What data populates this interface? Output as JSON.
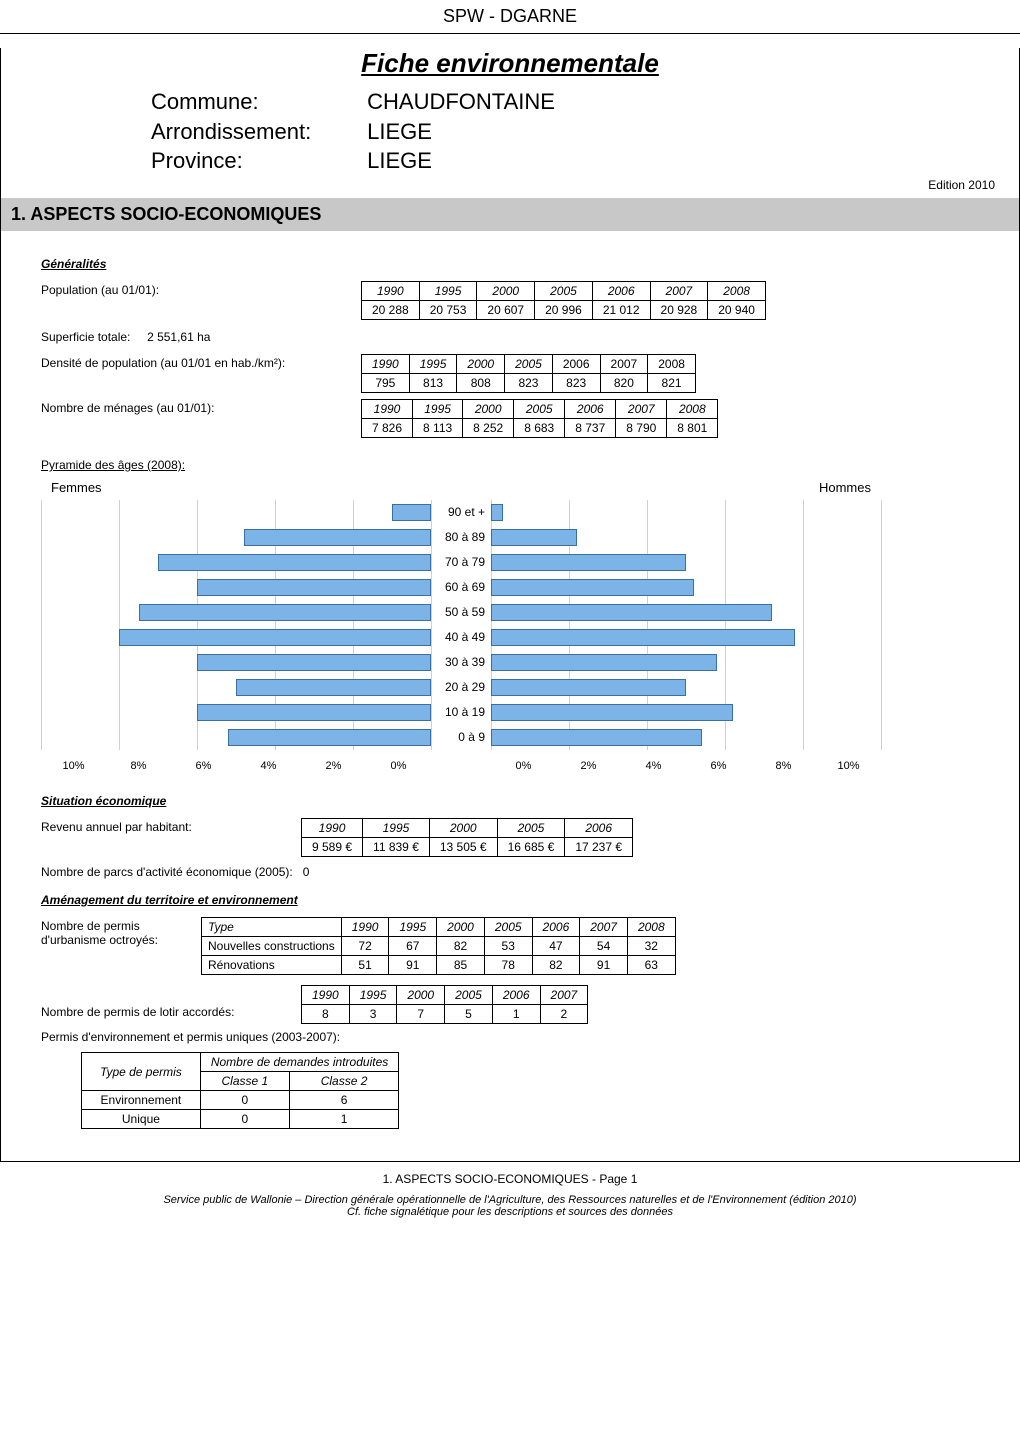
{
  "header": {
    "org": "SPW - DGARNE",
    "fiche_title": "Fiche environnementale"
  },
  "commune": {
    "commune_label": "Commune:",
    "commune_value": "CHAUDFONTAINE",
    "arr_label": "Arrondissement:",
    "arr_value": "LIEGE",
    "prov_label": "Province:",
    "prov_value": "LIEGE",
    "edition": "Edition  2010"
  },
  "section1": {
    "title": "1. ASPECTS SOCIO-ECONOMIQUES"
  },
  "generalites": {
    "title": "Généralités",
    "population_label": "Population (au 01/01):",
    "population": {
      "years": [
        "1990",
        "1995",
        "2000",
        "2005",
        "2006",
        "2007",
        "2008"
      ],
      "values": [
        "20 288",
        "20 753",
        "20 607",
        "20 996",
        "21 012",
        "20 928",
        "20 940"
      ]
    },
    "superficie_label": "Superficie totale:",
    "superficie_value": "2 551,61 ha",
    "densite_label": "Densité de population (au 01/01 en hab./km²):",
    "densite": {
      "years": [
        "1990",
        "1995",
        "2000",
        "2005",
        "2006",
        "2007",
        "2008"
      ],
      "values": [
        "795",
        "813",
        "808",
        "823",
        "823",
        "820",
        "821"
      ],
      "year_italics": [
        true,
        true,
        true,
        true,
        false,
        false,
        false
      ]
    },
    "menages_label": "Nombre de ménages (au 01/01):",
    "menages": {
      "years": [
        "1990",
        "1995",
        "2000",
        "2005",
        "2006",
        "2007",
        "2008"
      ],
      "values": [
        "7 826",
        "8 113",
        "8 252",
        "8 683",
        "8 737",
        "8 790",
        "8 801"
      ]
    },
    "pyramide_label": "Pyramide des âges (2008):",
    "pyramid": {
      "left_title": "Femmes",
      "right_title": "Hommes",
      "age_labels": [
        "90 et +",
        "80 à 89",
        "70 à 79",
        "60 à 69",
        "50 à 59",
        "40 à 49",
        "30 à 39",
        "20 à 29",
        "10 à 19",
        "0 à 9"
      ],
      "female_pct": [
        1.0,
        4.8,
        7.0,
        6.0,
        7.5,
        8.0,
        6.0,
        5.0,
        6.0,
        5.2
      ],
      "male_pct": [
        0.3,
        2.2,
        5.0,
        5.2,
        7.2,
        7.8,
        5.8,
        5.0,
        6.2,
        5.4
      ],
      "x_ticks": [
        "10%",
        "8%",
        "6%",
        "4%",
        "2%",
        "0%"
      ],
      "x_ticks_right": [
        "0%",
        "2%",
        "4%",
        "6%",
        "8%",
        "10%"
      ],
      "x_max_pct": 10,
      "bar_fill": "#7db4e8",
      "bar_border": "#3b6fa0",
      "grid_color": "#d0d0d0"
    }
  },
  "situation": {
    "title": "Situation économique",
    "revenu_label": "Revenu annuel par habitant:",
    "revenu": {
      "years": [
        "1990",
        "1995",
        "2000",
        "2005",
        "2006"
      ],
      "values": [
        "9 589 €",
        "11 839 €",
        "13 505 €",
        "16 685 €",
        "17 237 €"
      ]
    },
    "parcs_label": "Nombre de parcs d'activité économique (2005):",
    "parcs_value": "0"
  },
  "amenagement": {
    "title": "Aménagement du territoire et environnement",
    "permis_label": "Nombre de permis d'urbanisme octroyés:",
    "permis": {
      "type_header": "Type",
      "years": [
        "1990",
        "1995",
        "2000",
        "2005",
        "2006",
        "2007",
        "2008"
      ],
      "rows": [
        {
          "type": "Nouvelles constructions",
          "vals": [
            "72",
            "67",
            "82",
            "53",
            "47",
            "54",
            "32"
          ]
        },
        {
          "type": "Rénovations",
          "vals": [
            "51",
            "91",
            "85",
            "78",
            "82",
            "91",
            "63"
          ]
        }
      ]
    },
    "lotir_label": "Nombre de permis de lotir accordés:",
    "lotir": {
      "years": [
        "1990",
        "1995",
        "2000",
        "2005",
        "2006",
        "2007"
      ],
      "values": [
        "8",
        "3",
        "7",
        "5",
        "1",
        "2"
      ]
    },
    "permis_env_label": "Permis d'environnement et permis uniques (2003-2007):",
    "permis_env": {
      "col_type": "Type de permis",
      "col_nb": "Nombre de demandes  introduites",
      "col_c1": "Classe 1",
      "col_c2": "Classe 2",
      "rows": [
        {
          "type": "Environnement",
          "c1": "0",
          "c2": "6"
        },
        {
          "type": "Unique",
          "c1": "0",
          "c2": "1"
        }
      ]
    }
  },
  "footer": {
    "page": "1. ASPECTS SOCIO-ECONOMIQUES - Page 1",
    "service": "Service public de Wallonie – Direction générale opérationnelle de l'Agriculture, des Ressources naturelles et de l'Environnement (édition 2010)",
    "cf": "Cf. fiche signalétique pour les descriptions et sources des données"
  }
}
